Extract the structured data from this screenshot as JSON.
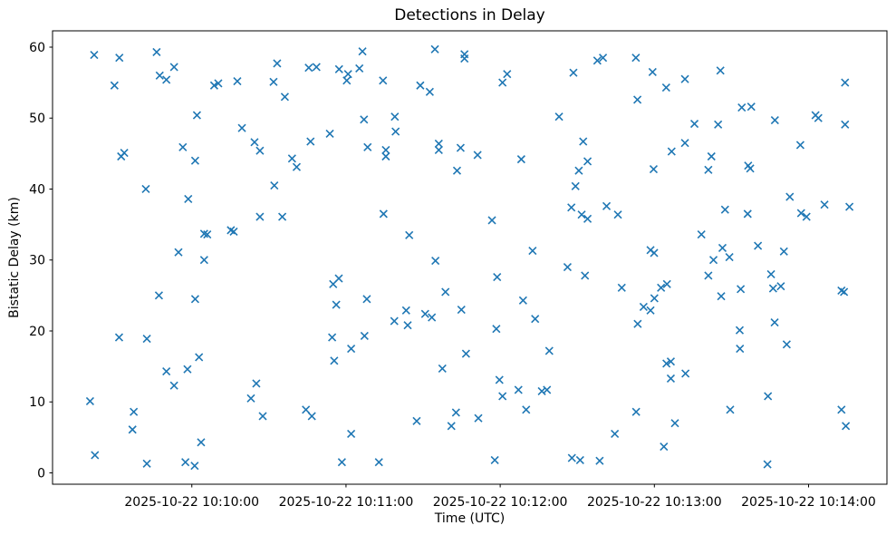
{
  "chart_data": {
    "type": "scatter",
    "title": "Detections in Delay",
    "xlabel": "Time (UTC)",
    "ylabel": "Bistatic Delay (km)",
    "legend": null,
    "grid": false,
    "marker": {
      "style": "x",
      "color": "#1f77b4",
      "half_size_px": 4,
      "stroke_width": 1.6
    },
    "x_epoch": "2025-10-22 10:09:00 UTC",
    "x_unit": "seconds after x_epoch",
    "xlim_seconds": [
      5.8,
      330.5
    ],
    "ylim": [
      -1.6,
      62.3
    ],
    "x_ticks": [
      {
        "s": 60,
        "label": "2025-10-22 10:10:00"
      },
      {
        "s": 120,
        "label": "2025-10-22 10:11:00"
      },
      {
        "s": 180,
        "label": "2025-10-22 10:12:00"
      },
      {
        "s": 240,
        "label": "2025-10-22 10:13:00"
      },
      {
        "s": 300,
        "label": "2025-10-22 10:14:00"
      }
    ],
    "y_ticks": [
      0,
      10,
      20,
      30,
      40,
      50,
      60
    ],
    "points": [
      [
        22.0,
        58.9
      ],
      [
        31.8,
        58.5
      ],
      [
        46.3,
        59.3
      ],
      [
        53.1,
        57.2
      ],
      [
        47.5,
        56.0
      ],
      [
        50.1,
        55.4
      ],
      [
        29.9,
        54.6
      ],
      [
        68.7,
        54.6
      ],
      [
        70.3,
        54.9
      ],
      [
        77.7,
        55.2
      ],
      [
        62.0,
        50.4
      ],
      [
        79.5,
        48.6
      ],
      [
        84.4,
        46.6
      ],
      [
        86.5,
        45.4
      ],
      [
        56.5,
        45.9
      ],
      [
        32.5,
        44.6
      ],
      [
        33.7,
        45.1
      ],
      [
        61.3,
        44.0
      ],
      [
        93.2,
        57.7
      ],
      [
        91.8,
        55.1
      ],
      [
        96.2,
        53.0
      ],
      [
        105.5,
        57.1
      ],
      [
        108.5,
        57.2
      ],
      [
        117.3,
        56.9
      ],
      [
        120.8,
        56.2
      ],
      [
        120.3,
        55.3
      ],
      [
        125.2,
        57.0
      ],
      [
        126.4,
        59.4
      ],
      [
        134.4,
        55.3
      ],
      [
        148.9,
        54.6
      ],
      [
        152.6,
        53.7
      ],
      [
        154.6,
        59.7
      ],
      [
        166.1,
        59.0
      ],
      [
        166.1,
        58.4
      ],
      [
        127.0,
        49.8
      ],
      [
        139.0,
        50.2
      ],
      [
        139.3,
        48.1
      ],
      [
        113.7,
        47.8
      ],
      [
        106.2,
        46.7
      ],
      [
        128.4,
        45.9
      ],
      [
        135.5,
        45.5
      ],
      [
        135.5,
        44.6
      ],
      [
        156.1,
        46.4
      ],
      [
        156.1,
        45.5
      ],
      [
        164.6,
        45.8
      ],
      [
        99.0,
        44.3
      ],
      [
        100.8,
        43.1
      ],
      [
        163.2,
        42.6
      ],
      [
        182.7,
        56.2
      ],
      [
        180.9,
        55.0
      ],
      [
        208.5,
        56.4
      ],
      [
        217.8,
        58.1
      ],
      [
        220.0,
        58.5
      ],
      [
        232.8,
        58.5
      ],
      [
        239.3,
        56.5
      ],
      [
        244.6,
        54.3
      ],
      [
        233.4,
        52.6
      ],
      [
        202.9,
        50.2
      ],
      [
        212.3,
        46.7
      ],
      [
        171.2,
        44.8
      ],
      [
        188.2,
        44.2
      ],
      [
        214.0,
        43.9
      ],
      [
        210.6,
        42.6
      ],
      [
        246.7,
        45.3
      ],
      [
        239.7,
        42.8
      ],
      [
        251.9,
        55.5
      ],
      [
        265.7,
        56.7
      ],
      [
        314.2,
        55.0
      ],
      [
        274.0,
        51.5
      ],
      [
        277.7,
        51.6
      ],
      [
        286.9,
        49.7
      ],
      [
        302.7,
        50.4
      ],
      [
        303.8,
        50.0
      ],
      [
        255.6,
        49.2
      ],
      [
        264.8,
        49.1
      ],
      [
        314.2,
        49.1
      ],
      [
        251.9,
        46.5
      ],
      [
        296.8,
        46.2
      ],
      [
        262.2,
        44.6
      ],
      [
        261.0,
        42.7
      ],
      [
        276.5,
        43.3
      ],
      [
        277.3,
        42.9
      ],
      [
        42.1,
        40.0
      ],
      [
        58.6,
        38.6
      ],
      [
        86.5,
        36.1
      ],
      [
        64.8,
        33.7
      ],
      [
        66.0,
        33.6
      ],
      [
        75.2,
        34.2
      ],
      [
        76.3,
        34.0
      ],
      [
        54.8,
        31.1
      ],
      [
        64.8,
        30.0
      ],
      [
        47.2,
        25.0
      ],
      [
        61.3,
        24.5
      ],
      [
        92.1,
        40.5
      ],
      [
        95.2,
        36.1
      ],
      [
        134.6,
        36.5
      ],
      [
        144.6,
        33.5
      ],
      [
        154.8,
        29.9
      ],
      [
        115.0,
        26.6
      ],
      [
        117.2,
        27.4
      ],
      [
        116.2,
        23.7
      ],
      [
        128.1,
        24.5
      ],
      [
        158.7,
        25.5
      ],
      [
        143.4,
        22.9
      ],
      [
        138.8,
        21.4
      ],
      [
        144.0,
        20.8
      ],
      [
        150.8,
        22.4
      ],
      [
        153.4,
        21.9
      ],
      [
        164.9,
        23.0
      ],
      [
        209.3,
        40.4
      ],
      [
        207.7,
        37.4
      ],
      [
        211.7,
        36.4
      ],
      [
        214.0,
        35.8
      ],
      [
        221.4,
        37.6
      ],
      [
        225.8,
        36.4
      ],
      [
        176.8,
        35.6
      ],
      [
        192.6,
        31.3
      ],
      [
        238.5,
        31.4
      ],
      [
        239.9,
        31.0
      ],
      [
        206.2,
        29.0
      ],
      [
        213.0,
        27.8
      ],
      [
        178.8,
        27.6
      ],
      [
        227.3,
        26.1
      ],
      [
        242.6,
        26.1
      ],
      [
        244.9,
        26.6
      ],
      [
        240.0,
        24.6
      ],
      [
        235.8,
        23.4
      ],
      [
        238.5,
        22.9
      ],
      [
        188.9,
        24.3
      ],
      [
        193.6,
        21.7
      ],
      [
        233.5,
        21.0
      ],
      [
        178.5,
        20.3
      ],
      [
        292.7,
        38.9
      ],
      [
        267.5,
        37.1
      ],
      [
        276.3,
        36.5
      ],
      [
        297.1,
        36.6
      ],
      [
        299.2,
        36.1
      ],
      [
        306.2,
        37.8
      ],
      [
        315.9,
        37.5
      ],
      [
        258.3,
        33.6
      ],
      [
        266.5,
        31.7
      ],
      [
        269.2,
        30.4
      ],
      [
        263.0,
        30.0
      ],
      [
        280.3,
        32.0
      ],
      [
        290.4,
        31.2
      ],
      [
        261.0,
        27.8
      ],
      [
        285.4,
        28.0
      ],
      [
        273.6,
        25.9
      ],
      [
        286.2,
        26.0
      ],
      [
        289.2,
        26.3
      ],
      [
        266.0,
        24.9
      ],
      [
        312.8,
        25.7
      ],
      [
        313.8,
        25.5
      ],
      [
        286.8,
        21.2
      ],
      [
        273.2,
        20.1
      ],
      [
        31.7,
        19.1
      ],
      [
        42.5,
        18.9
      ],
      [
        62.8,
        16.3
      ],
      [
        50.1,
        14.3
      ],
      [
        58.3,
        14.6
      ],
      [
        53.1,
        12.3
      ],
      [
        85.1,
        12.6
      ],
      [
        83.0,
        10.5
      ],
      [
        20.4,
        10.1
      ],
      [
        37.4,
        8.6
      ],
      [
        36.9,
        6.1
      ],
      [
        63.6,
        4.3
      ],
      [
        22.3,
        2.5
      ],
      [
        42.5,
        1.3
      ],
      [
        57.5,
        1.5
      ],
      [
        61.1,
        1.0
      ],
      [
        114.6,
        19.1
      ],
      [
        127.2,
        19.3
      ],
      [
        122.0,
        17.5
      ],
      [
        115.4,
        15.8
      ],
      [
        166.7,
        16.8
      ],
      [
        157.5,
        14.7
      ],
      [
        87.6,
        8.0
      ],
      [
        104.4,
        8.9
      ],
      [
        106.7,
        8.0
      ],
      [
        122.0,
        5.5
      ],
      [
        118.4,
        1.5
      ],
      [
        132.8,
        1.5
      ],
      [
        147.5,
        7.3
      ],
      [
        162.8,
        8.5
      ],
      [
        161.0,
        6.6
      ],
      [
        199.1,
        17.2
      ],
      [
        179.7,
        13.1
      ],
      [
        187.1,
        11.7
      ],
      [
        180.9,
        10.8
      ],
      [
        196.2,
        11.5
      ],
      [
        198.2,
        11.7
      ],
      [
        190.1,
        8.9
      ],
      [
        171.5,
        7.7
      ],
      [
        177.9,
        1.8
      ],
      [
        207.9,
        2.1
      ],
      [
        211.1,
        1.8
      ],
      [
        218.7,
        1.7
      ],
      [
        224.6,
        5.5
      ],
      [
        232.9,
        8.6
      ],
      [
        243.7,
        3.7
      ],
      [
        244.7,
        15.4
      ],
      [
        246.4,
        15.7
      ],
      [
        246.4,
        13.3
      ],
      [
        248.0,
        7.0
      ],
      [
        273.3,
        17.5
      ],
      [
        291.5,
        18.1
      ],
      [
        252.1,
        14.0
      ],
      [
        284.2,
        10.8
      ],
      [
        269.5,
        8.9
      ],
      [
        312.8,
        8.9
      ],
      [
        314.5,
        6.6
      ],
      [
        284.0,
        1.2
      ]
    ]
  }
}
